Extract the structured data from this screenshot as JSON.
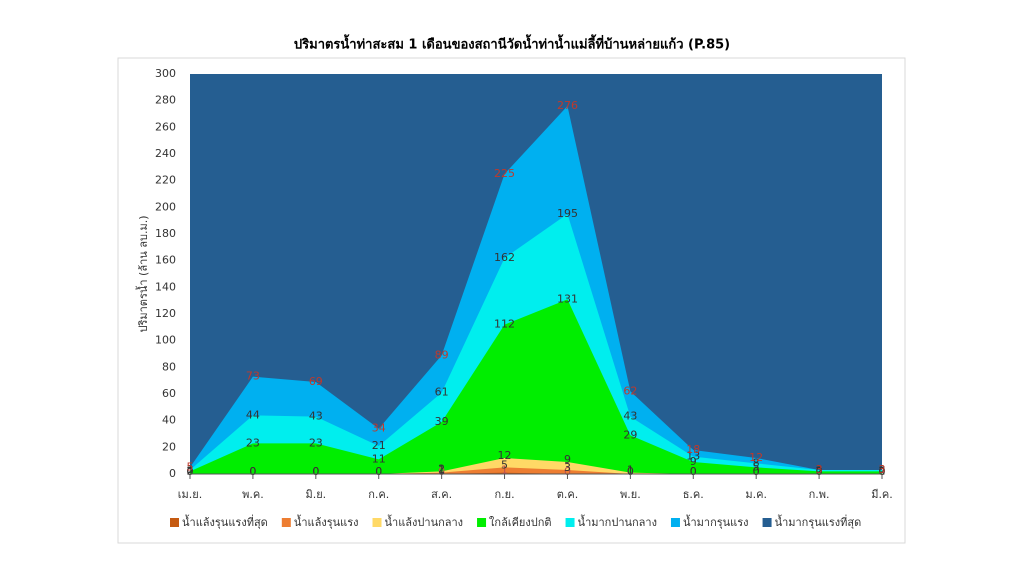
{
  "chart_data": {
    "type": "area",
    "title": "ปริมาตรน้ำท่าสะสม 1 เดือนของสถานีวัดน้ำท่าน้ำแม่ลี้ที่บ้านหล่ายแก้ว (P.85)",
    "y_label": "ปริมาตรน้ำ (ล้าน ลบ.ม.)",
    "categories": [
      "เม.ย.",
      "พ.ค.",
      "มิ.ย.",
      "ก.ค.",
      "ส.ค.",
      "ก.ย.",
      "ต.ค.",
      "พ.ย.",
      "ธ.ค.",
      "ม.ค.",
      "ก.พ.",
      "มี.ค."
    ],
    "ylim": [
      0,
      300
    ],
    "yticks": [
      0,
      20,
      40,
      60,
      80,
      100,
      120,
      140,
      160,
      180,
      200,
      220,
      240,
      260,
      280,
      300
    ],
    "series": [
      {
        "name": "น้ำแล้งรุนแรงที่สุด",
        "color": "#c55a11",
        "label_color": "#c0504d",
        "values": [
          0,
          0,
          0,
          0,
          0,
          1,
          0,
          0,
          0,
          0,
          0,
          0
        ]
      },
      {
        "name": "น้ำแล้งรุนแรง",
        "color": "#ed7d31",
        "label_color": "#333333",
        "values": [
          0,
          0,
          0,
          0,
          1,
          5,
          3,
          0,
          0,
          0,
          0,
          0
        ]
      },
      {
        "name": "น้ำแล้งปานกลาง",
        "color": "#ffd966",
        "label_color": "#333333",
        "values": [
          0,
          0,
          0,
          0,
          2,
          12,
          9,
          1,
          0,
          0,
          0,
          0
        ]
      },
      {
        "name": "ใกล้เคียงปกติ",
        "color": "#00ee00",
        "label_color": "#333333",
        "values": [
          2,
          23,
          23,
          11,
          39,
          112,
          131,
          29,
          9,
          5,
          2,
          2
        ]
      },
      {
        "name": "น้ำมากปานกลาง",
        "color": "#00eeee",
        "label_color": "#333333",
        "values": [
          3,
          44,
          43,
          21,
          61,
          162,
          195,
          43,
          13,
          8,
          3,
          3
        ]
      },
      {
        "name": "น้ำมากรุนแรง",
        "color": "#00b0f0",
        "label_color": "#c0392b",
        "values": [
          5,
          73,
          69,
          34,
          89,
          225,
          276,
          62,
          18,
          12,
          3,
          3
        ]
      },
      {
        "name": "น้ำมากรุนแรงที่สุด",
        "color": "#255e91",
        "label_color": null,
        "values": [
          300,
          300,
          300,
          300,
          300,
          300,
          300,
          300,
          300,
          300,
          300,
          300
        ]
      }
    ]
  }
}
